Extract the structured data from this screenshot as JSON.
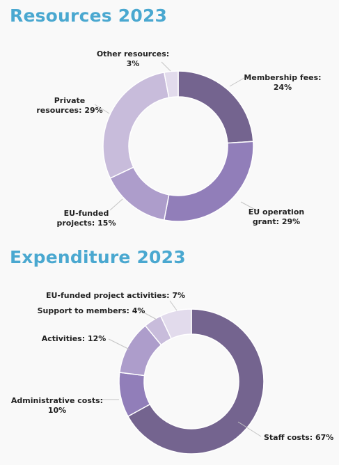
{
  "page": {
    "background": "#f9f9f9"
  },
  "sections": {
    "resources": {
      "title": "Resources 2023"
    },
    "expenditure": {
      "title": "Expenditure 2023"
    }
  },
  "chart_data": [
    {
      "type": "pie",
      "title": "Resources 2023",
      "donut": true,
      "categories": [
        "Membership fees",
        "EU operation grant",
        "EU-funded projects",
        "Private resources",
        "Other resources"
      ],
      "values": [
        24,
        29,
        15,
        29,
        3
      ],
      "unit": "%",
      "colors": [
        "#74648f",
        "#917eb9",
        "#ad9dcb",
        "#c8bcdb",
        "#e2dbec"
      ],
      "labels": [
        [
          "Membership fees:",
          "24%"
        ],
        [
          "EU operation",
          "grant: 29%"
        ],
        [
          "EU-funded",
          "projects: 15%"
        ],
        [
          "Private",
          "resources: 29%"
        ],
        [
          "Other resources:",
          "3%"
        ]
      ],
      "legend": "none"
    },
    {
      "type": "pie",
      "title": "Expenditure 2023",
      "donut": true,
      "categories": [
        "Staff costs",
        "Administrative costs",
        "Activities",
        "Support to members",
        "EU-funded project activities"
      ],
      "values": [
        67,
        10,
        12,
        4,
        7
      ],
      "unit": "%",
      "colors": [
        "#74648f",
        "#917eb9",
        "#ad9dcb",
        "#c8bcdb",
        "#e2dbec"
      ],
      "labels": [
        [
          "Staff costs: 67%"
        ],
        [
          "Administrative costs:",
          "10%"
        ],
        [
          "Activities: 12%"
        ],
        [
          "Support to members: 4%"
        ],
        [
          "EU-funded project activities: 7%"
        ]
      ],
      "legend": "none"
    }
  ]
}
